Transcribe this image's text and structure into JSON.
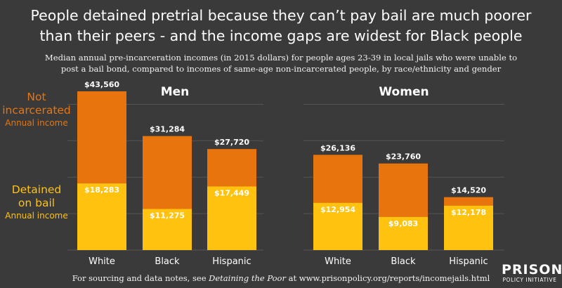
{
  "title_line1": "People detained pretrial because they can’t pay bail are much poorer",
  "title_line2": "than their peers - and the income gaps are widest for Black people",
  "subtitle_line1": "Median annual pre-incarceration incomes (in 2015 dollars) for people ages 23-39 in local jails who were unable to",
  "subtitle_line2": "post a bail bond, compared to incomes of same-age non-incarcerated people, by race/ethnicity  and gender",
  "legend": {
    "not_incarcerated_line1": "Not",
    "not_incarcerated_line2": "incarcerated",
    "not_incarcerated_sub": "Annual income",
    "detained_line1": "Detained",
    "detained_line2": "on bail",
    "detained_sub": "Annual income"
  },
  "colors": {
    "not_incarcerated": "#e8740e",
    "detained": "#ffc20e",
    "background": "#3a3a3a",
    "grid": "#555555"
  },
  "footer": {
    "before": "For sourcing and data notes, see ",
    "italic": "Detaining the Poor",
    "after": " at www.prisonpolicy.org/reports/incomejails.html"
  },
  "logo": {
    "line1": "PRISON",
    "line2": "POLICY INITIATIVE"
  },
  "chart_data": [
    {
      "type": "bar",
      "title": "Men",
      "categories": [
        "White",
        "Black",
        "Hispanic"
      ],
      "ylim": [
        0,
        45000
      ],
      "series": [
        {
          "name": "Not incarcerated",
          "values": [
            43560,
            31284,
            27720
          ],
          "labels": [
            "$43,560",
            "$31,284",
            "$27,720"
          ]
        },
        {
          "name": "Detained on bail",
          "values": [
            18283,
            11275,
            17449
          ],
          "labels": [
            "$18,283",
            "$11,275",
            "$17,449"
          ]
        }
      ]
    },
    {
      "type": "bar",
      "title": "Women",
      "categories": [
        "White",
        "Black",
        "Hispanic"
      ],
      "ylim": [
        0,
        45000
      ],
      "series": [
        {
          "name": "Not incarcerated",
          "values": [
            26136,
            23760,
            14520
          ],
          "labels": [
            "$26,136",
            "$23,760",
            "$14,520"
          ]
        },
        {
          "name": "Detained on bail",
          "values": [
            12954,
            9083,
            12178
          ],
          "labels": [
            "$12,954",
            "$9,083",
            "$12,178"
          ]
        }
      ]
    }
  ]
}
